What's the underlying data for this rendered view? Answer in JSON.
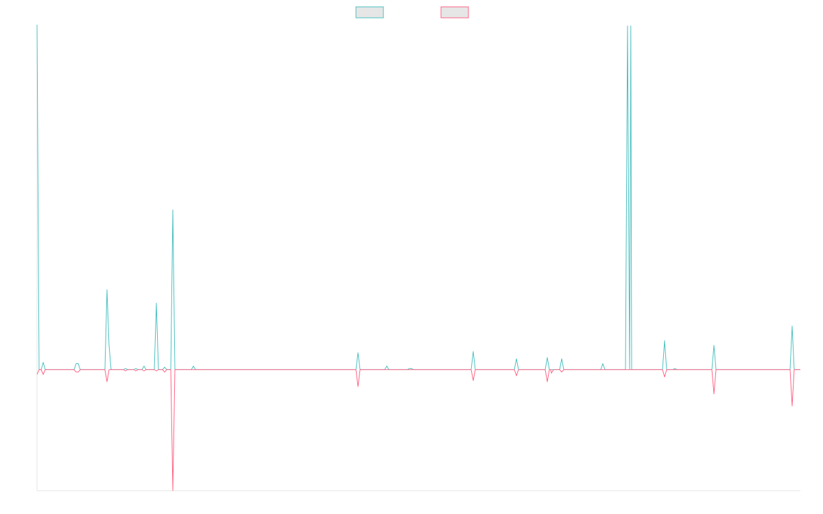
{
  "chart_data": {
    "type": "line",
    "title": "",
    "xlabel": "",
    "ylabel": "",
    "ylim": [
      -1,
      2.85
    ],
    "legend": {
      "placement": "top-center",
      "show_labels": false
    },
    "grid": false,
    "x": [
      0,
      1,
      2,
      3,
      4,
      5,
      6,
      7,
      8,
      9,
      10,
      11,
      12,
      13,
      14,
      15,
      16,
      17,
      18,
      19,
      20,
      21,
      22,
      23,
      24,
      25,
      26,
      27,
      28,
      29,
      30,
      31,
      32,
      33,
      34,
      35,
      36,
      37,
      38,
      39,
      40,
      41,
      42,
      43,
      44,
      45,
      46,
      47,
      48,
      49,
      50,
      51,
      52,
      53,
      54,
      55,
      56,
      57,
      58,
      59,
      60,
      61,
      62,
      63,
      64,
      65,
      66,
      67,
      68,
      69,
      70,
      71,
      72,
      73,
      74,
      75,
      76,
      77,
      78,
      79,
      80,
      81,
      82,
      83,
      84,
      85,
      86,
      87,
      88,
      89,
      90,
      91,
      92,
      93,
      94,
      95,
      96,
      97,
      98,
      99,
      100,
      101,
      102,
      103,
      104,
      105,
      106,
      107,
      108,
      109,
      110,
      111,
      112,
      113,
      114,
      115,
      116,
      117,
      118,
      119,
      120,
      121,
      122,
      123,
      124,
      125,
      126,
      127,
      128,
      129,
      130,
      131,
      132,
      133,
      134,
      135,
      136,
      137,
      138,
      139,
      140,
      141,
      142,
      143,
      144,
      145,
      146,
      147,
      148,
      149,
      150,
      151,
      152,
      153,
      154,
      155,
      156,
      157,
      158,
      159,
      160,
      161,
      162,
      163,
      164,
      165,
      166,
      167,
      168,
      169,
      170,
      171,
      172,
      173,
      174,
      175,
      176,
      177,
      178,
      179,
      180,
      181,
      182,
      183,
      184,
      185,
      186,
      187,
      188,
      189,
      190,
      191,
      192,
      193,
      194,
      195,
      196,
      197,
      198,
      199,
      200,
      201,
      202,
      203,
      204,
      205,
      206,
      207,
      208,
      209,
      210,
      211,
      212,
      213,
      214,
      215,
      216,
      217,
      218,
      219,
      220,
      221,
      222,
      223,
      224,
      225,
      226,
      227,
      228,
      229,
      230,
      231,
      232,
      233,
      234,
      235,
      236,
      237,
      238,
      239,
      240,
      241,
      242,
      243,
      244,
      245,
      246,
      247,
      248,
      249,
      250,
      251,
      252,
      253,
      254,
      255,
      256,
      257,
      258,
      259,
      260,
      261,
      262,
      263,
      264,
      265,
      266,
      267,
      268,
      269,
      270,
      271,
      272,
      273,
      274,
      275,
      276,
      277,
      278,
      279,
      280,
      281,
      282,
      283,
      284,
      285,
      286,
      287,
      288,
      289,
      290,
      291,
      292,
      293,
      294,
      295,
      296,
      297,
      298,
      299,
      300,
      301,
      302,
      303,
      304,
      305,
      306,
      307,
      308,
      309,
      310,
      311,
      312,
      313,
      314,
      315,
      316,
      317,
      318,
      319,
      320,
      321,
      322,
      323,
      324,
      325,
      326,
      327,
      328,
      329,
      330,
      331,
      332,
      333,
      334,
      335,
      336,
      337,
      338,
      339,
      340,
      341,
      342,
      343,
      344,
      345,
      346,
      347,
      348,
      349,
      350,
      351,
      352,
      353,
      354,
      355,
      356,
      357,
      358,
      359,
      360,
      361,
      362,
      363,
      364,
      365,
      366,
      367,
      368,
      369,
      370,
      371
    ],
    "series": [
      {
        "name": "",
        "color": "#4BC0C0",
        "fill": "#E6E6E6",
        "points": [
          [
            0,
            2.85
          ],
          [
            1,
            0
          ],
          [
            3,
            0.06
          ],
          [
            4,
            0
          ],
          [
            18,
            0
          ],
          [
            19,
            0.05
          ],
          [
            20,
            0.05
          ],
          [
            21,
            0
          ],
          [
            33,
            0
          ],
          [
            34,
            0.66
          ],
          [
            35,
            0.2
          ],
          [
            36,
            0
          ],
          [
            42,
            0
          ],
          [
            43,
            0.01
          ],
          [
            44,
            0
          ],
          [
            47,
            0
          ],
          [
            48,
            0.01
          ],
          [
            49,
            0
          ],
          [
            51,
            0
          ],
          [
            52,
            0.03
          ],
          [
            53,
            0
          ],
          [
            57,
            0
          ],
          [
            58,
            0.55
          ],
          [
            59,
            0
          ],
          [
            61,
            0
          ],
          [
            62,
            0.02
          ],
          [
            63,
            0
          ],
          [
            65,
            0
          ],
          [
            66,
            1.32
          ],
          [
            67,
            0
          ],
          [
            75,
            0
          ],
          [
            76,
            0.03
          ],
          [
            77,
            0
          ],
          [
            155,
            0
          ],
          [
            156,
            0.14
          ],
          [
            157,
            0
          ],
          [
            169,
            0
          ],
          [
            170,
            0.03
          ],
          [
            171,
            0
          ],
          [
            180,
            0
          ],
          [
            181,
            0.01
          ],
          [
            182,
            0.01
          ],
          [
            183,
            0
          ],
          [
            211,
            0
          ],
          [
            212,
            0.15
          ],
          [
            213,
            0
          ],
          [
            232,
            0
          ],
          [
            233,
            0.09
          ],
          [
            234,
            0
          ],
          [
            247,
            0
          ],
          [
            248,
            0.1
          ],
          [
            249,
            0
          ],
          [
            254,
            0
          ],
          [
            255,
            0.09
          ],
          [
            256,
            0
          ],
          [
            274,
            0
          ],
          [
            275,
            0.05
          ],
          [
            276,
            0
          ],
          [
            286,
            0
          ],
          [
            287,
            2.84
          ],
          [
            288,
            0
          ],
          [
            288.6,
            2.84
          ],
          [
            289,
            0
          ],
          [
            304,
            0
          ],
          [
            305,
            0.24
          ],
          [
            306,
            0
          ],
          [
            309,
            0
          ],
          [
            310,
            0.01
          ],
          [
            311,
            0
          ],
          [
            328,
            0
          ],
          [
            329,
            0.2
          ],
          [
            330,
            0
          ],
          [
            366,
            0
          ],
          [
            367,
            0.36
          ],
          [
            368,
            0
          ],
          [
            371,
            0
          ]
        ]
      },
      {
        "name": "",
        "color": "#FF6384",
        "fill": "#E6E6E6",
        "points": [
          [
            0,
            -0.04
          ],
          [
            1,
            0
          ],
          [
            3,
            -0.04
          ],
          [
            4,
            0
          ],
          [
            18,
            0
          ],
          [
            19,
            -0.02
          ],
          [
            20,
            -0.02
          ],
          [
            21,
            0
          ],
          [
            33,
            0
          ],
          [
            34,
            -0.1
          ],
          [
            35,
            0
          ],
          [
            42,
            0
          ],
          [
            43,
            -0.01
          ],
          [
            44,
            0
          ],
          [
            47,
            0
          ],
          [
            48,
            -0.01
          ],
          [
            49,
            0
          ],
          [
            51,
            0
          ],
          [
            52,
            -0.01
          ],
          [
            53,
            0
          ],
          [
            57,
            0
          ],
          [
            58,
            -0.01
          ],
          [
            59,
            0
          ],
          [
            61,
            0
          ],
          [
            62,
            -0.02
          ],
          [
            63,
            0
          ],
          [
            65,
            0
          ],
          [
            66,
            -1.0
          ],
          [
            67,
            0
          ],
          [
            155,
            0
          ],
          [
            156,
            -0.14
          ],
          [
            157,
            0
          ],
          [
            211,
            0
          ],
          [
            212,
            -0.09
          ],
          [
            213,
            0
          ],
          [
            232,
            0
          ],
          [
            233,
            -0.05
          ],
          [
            234,
            0
          ],
          [
            247,
            0
          ],
          [
            248,
            -0.1
          ],
          [
            249,
            0
          ],
          [
            249.6,
            0
          ],
          [
            250,
            -0.03
          ],
          [
            251,
            0
          ],
          [
            254,
            0
          ],
          [
            255,
            -0.02
          ],
          [
            256,
            0
          ],
          [
            304,
            0
          ],
          [
            305,
            -0.06
          ],
          [
            306,
            0
          ],
          [
            328,
            0
          ],
          [
            329,
            -0.2
          ],
          [
            330,
            0
          ],
          [
            366,
            0
          ],
          [
            367,
            -0.3
          ],
          [
            368,
            0
          ],
          [
            371,
            0
          ]
        ]
      }
    ]
  }
}
